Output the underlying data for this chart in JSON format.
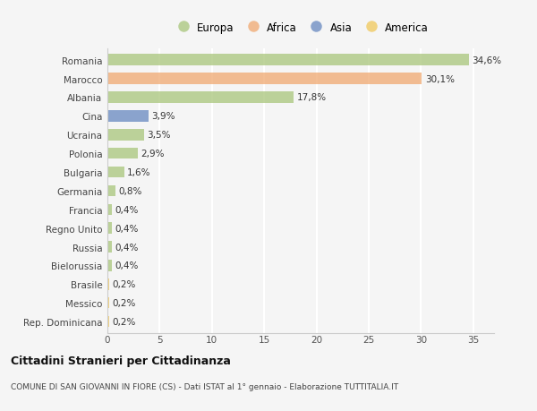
{
  "countries": [
    "Romania",
    "Marocco",
    "Albania",
    "Cina",
    "Ucraina",
    "Polonia",
    "Bulgaria",
    "Germania",
    "Francia",
    "Regno Unito",
    "Russia",
    "Bielorussia",
    "Brasile",
    "Messico",
    "Rep. Dominicana"
  ],
  "values": [
    34.6,
    30.1,
    17.8,
    3.9,
    3.5,
    2.9,
    1.6,
    0.8,
    0.4,
    0.4,
    0.4,
    0.4,
    0.2,
    0.2,
    0.2
  ],
  "labels": [
    "34,6%",
    "30,1%",
    "17,8%",
    "3,9%",
    "3,5%",
    "2,9%",
    "1,6%",
    "0,8%",
    "0,4%",
    "0,4%",
    "0,4%",
    "0,4%",
    "0,2%",
    "0,2%",
    "0,2%"
  ],
  "continents": [
    "Europa",
    "Africa",
    "Europa",
    "Asia",
    "Europa",
    "Europa",
    "Europa",
    "Europa",
    "Europa",
    "Europa",
    "Europa",
    "Europa",
    "America",
    "America",
    "America"
  ],
  "colors": {
    "Europa": "#a8c57a",
    "Africa": "#f0a870",
    "Asia": "#6688c0",
    "America": "#f0c85a"
  },
  "legend_order": [
    "Europa",
    "Africa",
    "Asia",
    "America"
  ],
  "title1": "Cittadini Stranieri per Cittadinanza",
  "title2": "COMUNE DI SAN GIOVANNI IN FIORE (CS) - Dati ISTAT al 1° gennaio - Elaborazione TUTTITALIA.IT",
  "xlim": [
    0,
    37
  ],
  "xticks": [
    0,
    5,
    10,
    15,
    20,
    25,
    30,
    35
  ],
  "bg_color": "#f5f5f5",
  "grid_color": "#ffffff",
  "bar_height": 0.6,
  "bar_alpha": 0.75
}
